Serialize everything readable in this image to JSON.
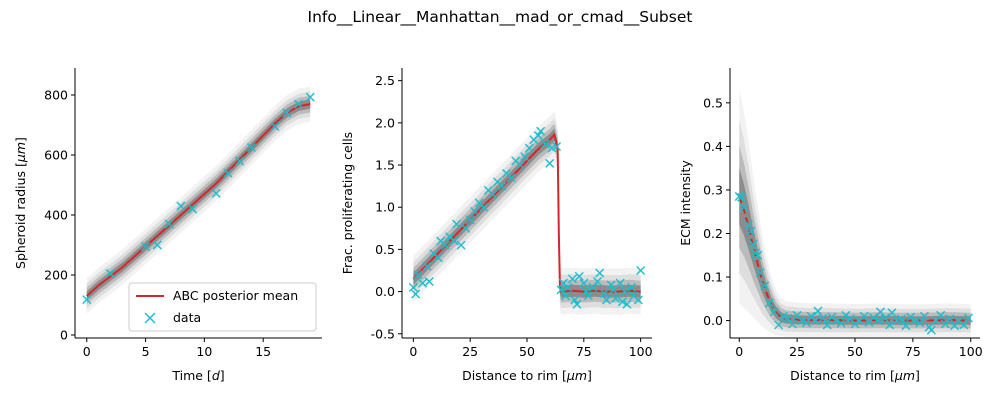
{
  "figure": {
    "title": "Info__Linear__Manhattan__mad_or_cmad__Subset"
  },
  "legend": {
    "items": [
      {
        "label": "ABC posterior mean",
        "marker": "line",
        "color": "#d62728"
      },
      {
        "label": "data",
        "marker": "x",
        "color": "#17becf"
      }
    ]
  },
  "chart_data": [
    {
      "type": "line",
      "xlabel": "Time [d]",
      "xlabel_main": "Time ",
      "xlabel_unit": "d",
      "ylabel": "Spheroid radius [μm]",
      "ylabel_main": "Spheroid radius ",
      "ylabel_unit": "μm",
      "xlim": [
        -1,
        20
      ],
      "ylim": [
        -10,
        890
      ],
      "xticks": [
        0,
        5,
        10,
        15
      ],
      "yticks": [
        0,
        200,
        400,
        600,
        800
      ],
      "legend_position": "lower-right",
      "series": [
        {
          "name": "ABC posterior mean",
          "color": "#d62728",
          "x": [
            0,
            1,
            2,
            3,
            4,
            5,
            6,
            7,
            8,
            9,
            10,
            11,
            12,
            13,
            14,
            15,
            16,
            17,
            18,
            19
          ],
          "y": [
            130,
            165,
            195,
            225,
            260,
            295,
            330,
            365,
            400,
            435,
            470,
            505,
            545,
            585,
            625,
            665,
            705,
            740,
            762,
            770
          ]
        },
        {
          "name": "data",
          "color": "#17becf",
          "marker": "x",
          "x": [
            0,
            2,
            5,
            6,
            7,
            8,
            9,
            11,
            12,
            13,
            14,
            16,
            17,
            18,
            19
          ],
          "y": [
            118,
            205,
            295,
            300,
            370,
            430,
            420,
            472,
            540,
            580,
            625,
            695,
            740,
            770,
            793
          ]
        }
      ]
    },
    {
      "type": "line",
      "xlabel": "Distance to rim [μm]",
      "xlabel_main": "Distance to rim ",
      "xlabel_unit": "μm",
      "ylabel": "Frac. proliferating cells",
      "xlim": [
        -5,
        105
      ],
      "ylim": [
        -0.55,
        2.65
      ],
      "xticks": [
        0,
        25,
        50,
        75,
        100
      ],
      "yticks": [
        -0.5,
        0.0,
        0.5,
        1.0,
        1.5,
        2.0,
        2.5
      ],
      "series": [
        {
          "name": "ABC posterior mean",
          "color": "#d62728",
          "x": [
            0,
            5,
            10,
            15,
            20,
            25,
            30,
            35,
            40,
            45,
            50,
            55,
            60,
            62,
            63.5,
            64,
            64.5,
            65,
            70,
            75,
            80,
            85,
            90,
            95,
            100
          ],
          "y": [
            0.15,
            0.29,
            0.43,
            0.57,
            0.71,
            0.85,
            0.99,
            1.13,
            1.27,
            1.41,
            1.55,
            1.69,
            1.8,
            1.86,
            1.7,
            0.7,
            0.05,
            0.0,
            0.01,
            0.0,
            0.01,
            0.0,
            0.0,
            0.01,
            0.0
          ]
        },
        {
          "name": "data",
          "color": "#17becf",
          "marker": "x",
          "x": [
            0,
            1,
            2,
            4,
            6,
            7,
            9,
            11,
            12,
            14,
            16,
            18,
            19,
            21,
            23,
            25,
            27,
            29,
            31,
            33,
            35,
            37,
            39,
            41,
            43,
            45,
            47,
            49,
            51,
            53,
            55,
            56,
            58,
            60,
            61,
            63,
            65,
            66,
            67,
            68,
            70,
            71,
            72,
            73,
            75,
            76,
            77,
            79,
            81,
            82,
            84,
            85,
            87,
            88,
            89,
            91,
            92,
            93,
            94,
            96,
            97,
            99,
            100
          ],
          "y": [
            0.05,
            -0.03,
            0.2,
            0.1,
            0.3,
            0.12,
            0.45,
            0.4,
            0.6,
            0.55,
            0.65,
            0.6,
            0.8,
            0.55,
            0.75,
            0.85,
            0.95,
            1.05,
            1.0,
            1.2,
            1.15,
            1.3,
            1.25,
            1.4,
            1.35,
            1.55,
            1.5,
            1.6,
            1.7,
            1.8,
            1.85,
            1.9,
            1.75,
            1.52,
            1.7,
            1.72,
            0.02,
            0.1,
            -0.05,
            0.05,
            0.15,
            -0.1,
            -0.15,
            0.18,
            0.1,
            0.0,
            -0.05,
            0.05,
            0.12,
            0.22,
            -0.02,
            -0.1,
            0.08,
            0.02,
            -0.08,
            0.1,
            -0.12,
            0.0,
            -0.15,
            0.05,
            -0.05,
            -0.1,
            0.25
          ]
        }
      ]
    },
    {
      "type": "line",
      "xlabel": "Distance to rim [μm]",
      "xlabel_main": "Distance to rim ",
      "xlabel_unit": "μm",
      "ylabel": "ECM intensity",
      "xlim": [
        -4,
        104
      ],
      "ylim": [
        -0.04,
        0.58
      ],
      "xticks": [
        0,
        25,
        50,
        75,
        100
      ],
      "yticks": [
        0.0,
        0.1,
        0.2,
        0.3,
        0.4,
        0.5
      ],
      "series": [
        {
          "name": "ABC posterior mean",
          "color": "#d62728",
          "x": [
            0,
            2,
            4,
            6,
            8,
            10,
            12,
            14,
            16,
            18,
            20,
            25,
            30,
            40,
            50,
            60,
            70,
            80,
            90,
            100
          ],
          "y": [
            0.285,
            0.255,
            0.215,
            0.17,
            0.13,
            0.09,
            0.06,
            0.035,
            0.018,
            0.008,
            0.004,
            0.002,
            0.001,
            0.001,
            0.0,
            0.001,
            0.0,
            0.0,
            0.001,
            0.0
          ],
          "dashed": true
        },
        {
          "name": "data",
          "color": "#17becf",
          "marker": "x",
          "x": [
            0,
            1,
            2,
            4,
            5,
            6,
            7,
            8,
            9,
            11,
            13,
            15,
            17,
            19,
            21,
            23,
            25,
            27,
            29,
            31,
            33,
            34,
            36,
            38,
            40,
            42,
            44,
            46,
            48,
            50,
            52,
            54,
            56,
            58,
            60,
            61,
            63,
            65,
            66,
            68,
            70,
            72,
            74,
            76,
            78,
            80,
            82,
            83,
            85,
            87,
            89,
            91,
            93,
            95,
            97,
            99
          ],
          "y": [
            0.285,
            0.283,
            0.26,
            0.22,
            0.205,
            0.175,
            0.155,
            0.15,
            0.11,
            0.08,
            0.04,
            0.02,
            -0.01,
            0.01,
            0.005,
            -0.008,
            0.012,
            0.0,
            -0.005,
            0.01,
            0.0,
            0.022,
            0.005,
            -0.01,
            0.008,
            0.0,
            -0.006,
            0.012,
            0.004,
            -0.008,
            0.0,
            0.01,
            -0.004,
            0.007,
            0.0,
            0.02,
            0.005,
            -0.01,
            0.018,
            0.0,
            0.004,
            -0.012,
            0.008,
            0.0,
            -0.005,
            0.01,
            -0.015,
            -0.022,
            0.0,
            0.012,
            -0.008,
            0.004,
            -0.012,
            0.0,
            -0.01,
            0.006
          ]
        }
      ]
    }
  ]
}
